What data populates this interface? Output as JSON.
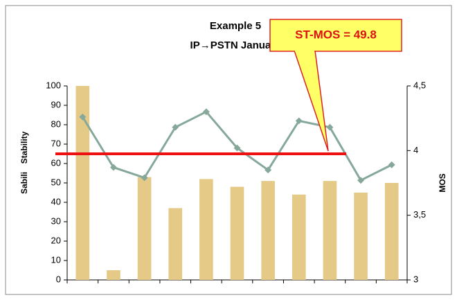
{
  "chart_data": {
    "type": "bar_line",
    "title": "Example 5",
    "subtitle": "IP→PSTN January",
    "y_label": "Stability",
    "y_label_overlay": "Sabili",
    "y2_label": "MOS",
    "annotation": "ST-MOS = 49.8",
    "categories": [
      null,
      null,
      null,
      null,
      null,
      null,
      null,
      null,
      null,
      null,
      null
    ],
    "series": [
      {
        "name": "Stability",
        "color": "#e5c987",
        "values": [
          100,
          5,
          53,
          37,
          52,
          48,
          51,
          44,
          51,
          45,
          50
        ]
      },
      {
        "name": "MOS",
        "color": "#86a89a",
        "axis": "y2",
        "values": [
          4.26,
          3.87,
          3.79,
          4.18,
          4.3,
          4.02,
          3.85,
          4.23,
          4.18,
          3.77,
          3.89
        ]
      }
    ],
    "reference_line": {
      "value": 65,
      "color": "#ee1111"
    },
    "ylim": [
      0,
      100
    ],
    "yticks": [
      0,
      10,
      20,
      30,
      40,
      50,
      60,
      70,
      80,
      90,
      100
    ],
    "y2lim": [
      3,
      4.5
    ],
    "y2ticks": [
      3,
      {
        "value": 3.5,
        "label": "3,5"
      },
      4,
      {
        "value": 4.5,
        "label": "4,5"
      }
    ]
  }
}
